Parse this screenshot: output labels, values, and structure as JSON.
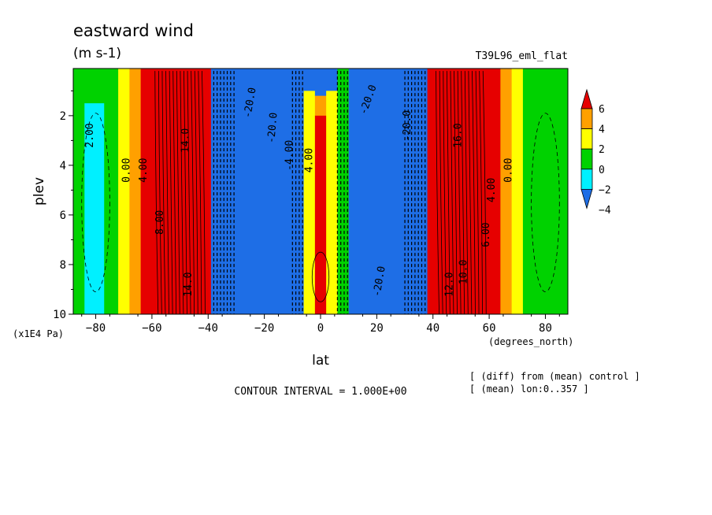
{
  "header": {
    "title": "eastward wind",
    "units": "(m s-1)",
    "dataset": "T39L96_eml_flat"
  },
  "footer": {
    "contour_interval": "CONTOUR INTERVAL = 1.000E+00",
    "note_diff": "[ (diff) from (mean) control ]",
    "note_mean": "[ (mean) lon:0..357 ]"
  },
  "chart_data": {
    "type": "heatmap",
    "xlabel": "lat",
    "x_unit": "(degrees_north)",
    "ylabel": "plev",
    "y_unit": "(x1E4 Pa)",
    "xlim": [
      -88,
      88
    ],
    "ylim": [
      10,
      0.1
    ],
    "x_ticks": [
      {
        "value": -80,
        "label": "−80"
      },
      {
        "value": -60,
        "label": "−60"
      },
      {
        "value": -40,
        "label": "−40"
      },
      {
        "value": -20,
        "label": "−20"
      },
      {
        "value": 0,
        "label": "0"
      },
      {
        "value": 20,
        "label": "20"
      },
      {
        "value": 40,
        "label": "40"
      },
      {
        "value": 60,
        "label": "60"
      },
      {
        "value": 80,
        "label": "80"
      }
    ],
    "y_ticks": [
      {
        "value": 2,
        "label": "2"
      },
      {
        "value": 4,
        "label": "4"
      },
      {
        "value": 6,
        "label": "6"
      },
      {
        "value": 8,
        "label": "8"
      },
      {
        "value": 10,
        "label": "10"
      }
    ],
    "colorbar": {
      "levels": [
        -4,
        -2,
        0,
        2,
        4,
        6
      ],
      "labels": [
        "6",
        "4",
        "2",
        "0",
        "−2",
        "−4"
      ],
      "colors": [
        "#1e6ee6",
        "#00f0ff",
        "#00d200",
        "#ffff00",
        "#ffa000",
        "#e60000"
      ]
    },
    "bands": [
      {
        "lat": -88,
        "ranges": [
          [
            0.1,
            10,
            -1.5
          ]
        ]
      },
      {
        "lat": -80,
        "ranges": [
          [
            0.1,
            1.5,
            -1
          ],
          [
            1.5,
            10,
            -2.5
          ]
        ]
      },
      {
        "lat": -74,
        "ranges": [
          [
            0.1,
            10,
            -1
          ]
        ]
      },
      {
        "lat": -70,
        "ranges": [
          [
            0.1,
            10,
            0.5
          ]
        ]
      },
      {
        "lat": -66,
        "ranges": [
          [
            0.1,
            10,
            2.5
          ]
        ]
      },
      {
        "lat": -62,
        "ranges": [
          [
            0.1,
            10,
            4.5
          ]
        ]
      },
      {
        "lat": -56,
        "ranges": [
          [
            0.1,
            10,
            8
          ]
        ]
      },
      {
        "lat": -46,
        "ranges": [
          [
            0.1,
            10,
            14
          ]
        ]
      },
      {
        "lat": -40,
        "ranges": [
          [
            0.1,
            10,
            5
          ]
        ]
      },
      {
        "lat": -38,
        "ranges": [
          [
            0.1,
            10,
            -8
          ]
        ]
      },
      {
        "lat": -20,
        "ranges": [
          [
            0.1,
            10,
            -20
          ]
        ]
      },
      {
        "lat": -8,
        "ranges": [
          [
            0.1,
            10,
            -6
          ]
        ]
      },
      {
        "lat": -4,
        "ranges": [
          [
            0.1,
            1,
            -6
          ],
          [
            1,
            10,
            0.5
          ]
        ]
      },
      {
        "lat": 0,
        "ranges": [
          [
            0.1,
            1.2,
            -6
          ],
          [
            1.2,
            2,
            2.5
          ],
          [
            2,
            10,
            4.5
          ]
        ]
      },
      {
        "lat": 4,
        "ranges": [
          [
            0.1,
            1,
            -6
          ],
          [
            1,
            10,
            0.5
          ]
        ]
      },
      {
        "lat": 8,
        "ranges": [
          [
            0.1,
            10,
            -1
          ]
        ]
      },
      {
        "lat": 12,
        "ranges": [
          [
            0.1,
            10,
            -6
          ]
        ]
      },
      {
        "lat": 24,
        "ranges": [
          [
            0.1,
            10,
            -20
          ]
        ]
      },
      {
        "lat": 36,
        "ranges": [
          [
            0.1,
            10,
            -8
          ]
        ]
      },
      {
        "lat": 40,
        "ranges": [
          [
            0.1,
            10,
            5
          ]
        ]
      },
      {
        "lat": 46,
        "ranges": [
          [
            0.1,
            10,
            14
          ]
        ]
      },
      {
        "lat": 56,
        "ranges": [
          [
            0.1,
            10,
            8
          ]
        ]
      },
      {
        "lat": 62,
        "ranges": [
          [
            0.1,
            10,
            4.5
          ]
        ]
      },
      {
        "lat": 66,
        "ranges": [
          [
            0.1,
            10,
            2.5
          ]
        ]
      },
      {
        "lat": 70,
        "ranges": [
          [
            0.1,
            10,
            0.5
          ]
        ]
      },
      {
        "lat": 74,
        "ranges": [
          [
            0.1,
            10,
            -1
          ]
        ]
      },
      {
        "lat": 88,
        "ranges": [
          [
            0.1,
            10,
            -1.5
          ]
        ]
      }
    ],
    "contour_labels": [
      {
        "text": "2.00",
        "lat": -81,
        "plev": 2.8,
        "rotate": -90
      },
      {
        "text": "0.00",
        "lat": -68,
        "plev": 4.2,
        "rotate": -90
      },
      {
        "text": "4.00",
        "lat": -62,
        "plev": 4.2,
        "rotate": -90
      },
      {
        "text": "8.00",
        "lat": -56,
        "plev": 6.3,
        "rotate": -90
      },
      {
        "text": "14.0",
        "lat": -47,
        "plev": 3.0,
        "rotate": -90
      },
      {
        "text": "14.0",
        "lat": -46,
        "plev": 8.8,
        "rotate": -90
      },
      {
        "text": "-20.0",
        "lat": -24,
        "plev": 1.5,
        "rotate": -80
      },
      {
        "text": "-20.0",
        "lat": -16,
        "plev": 2.5,
        "rotate": -85
      },
      {
        "text": "-4.00",
        "lat": -10,
        "plev": 3.6,
        "rotate": -90
      },
      {
        "text": "4.00",
        "lat": -3,
        "plev": 3.8,
        "rotate": -90
      },
      {
        "text": "-20.0",
        "lat": 18,
        "plev": 1.4,
        "rotate": -70
      },
      {
        "text": "-20.0",
        "lat": 32,
        "plev": 2.4,
        "rotate": -90
      },
      {
        "text": "-20.0",
        "lat": 22,
        "plev": 8.7,
        "rotate": -80
      },
      {
        "text": "16.0",
        "lat": 50,
        "plev": 2.8,
        "rotate": -90
      },
      {
        "text": "12.0",
        "lat": 47,
        "plev": 8.8,
        "rotate": -90
      },
      {
        "text": "10.0",
        "lat": 52,
        "plev": 8.3,
        "rotate": -90
      },
      {
        "text": "4.00",
        "lat": 62,
        "plev": 5.0,
        "rotate": -90
      },
      {
        "text": "0.00",
        "lat": 68,
        "plev": 4.2,
        "rotate": -90
      },
      {
        "text": "6.00",
        "lat": 60,
        "plev": 6.8,
        "rotate": -90
      }
    ]
  }
}
